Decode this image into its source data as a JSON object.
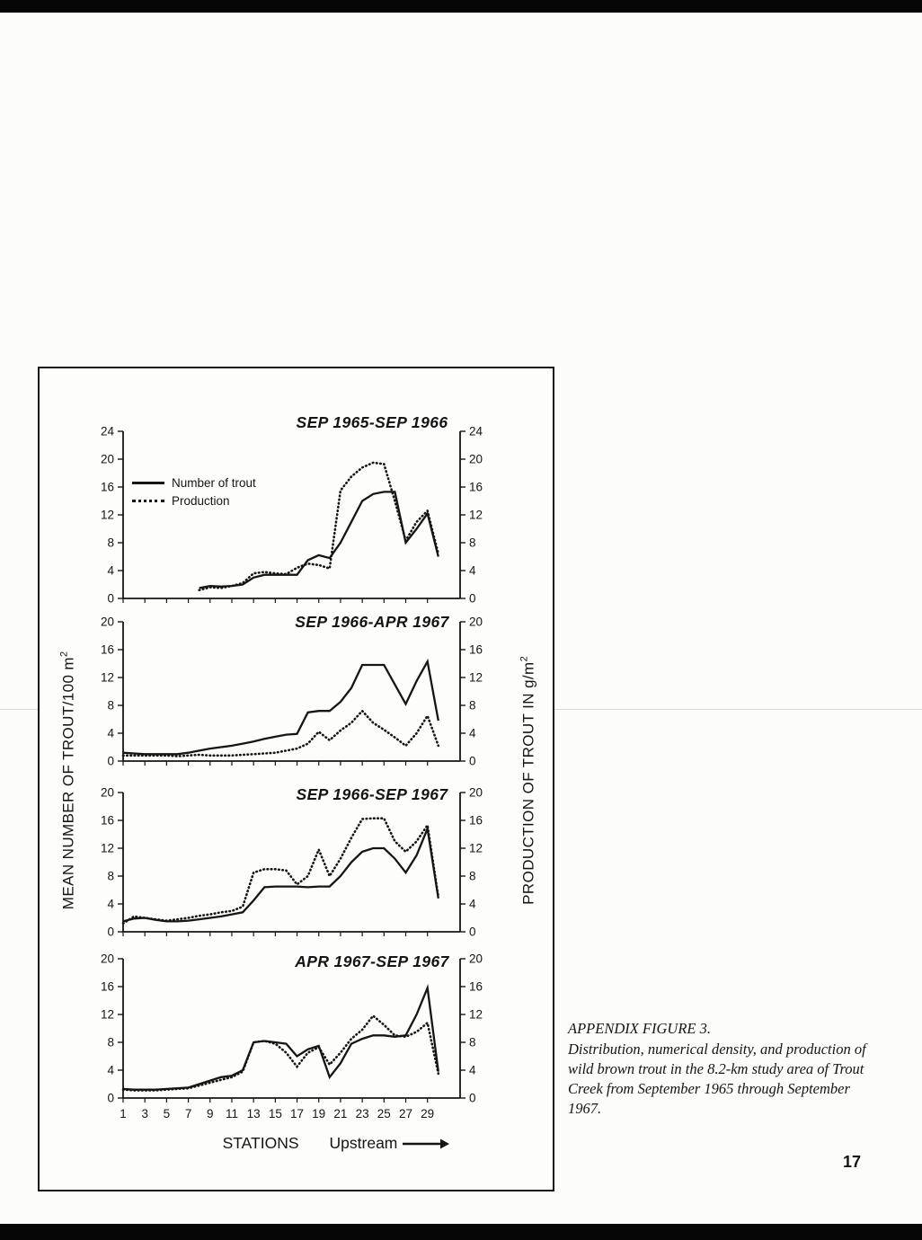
{
  "page": {
    "number": "17"
  },
  "caption": {
    "heading": "APPENDIX FIGURE 3.",
    "body": "Distribution, numerical density, and production of wild brown trout in the 8.2-km study area of Trout Creek from September 1965 through September 1967."
  },
  "legend": {
    "solid_label": "Number of trout",
    "dotted_label": "Production"
  },
  "axis": {
    "left_label": "MEAN NUMBER OF TROUT/100 m",
    "left_label_sup": "2",
    "right_label": "PRODUCTION OF TROUT IN g/m",
    "right_label_sup": "2",
    "x_label": "STATIONS",
    "x_sublabel": "Upstream",
    "x_ticks": [
      1,
      3,
      5,
      7,
      9,
      11,
      13,
      15,
      17,
      19,
      21,
      23,
      25,
      27,
      29
    ]
  },
  "chart_data": [
    {
      "type": "line",
      "title": "SEP 1965-SEP 1966",
      "xlabel": "STATIONS",
      "ylabel_left": "MEAN NUMBER OF TROUT/100 m2",
      "ylabel_right": "PRODUCTION OF TROUT IN g/m2",
      "ylim": [
        0,
        24
      ],
      "yticks": [
        0,
        4,
        8,
        12,
        16,
        20,
        24
      ],
      "show_x_ticks": false,
      "series": [
        {
          "name": "Number of trout",
          "style": "solid",
          "x": [
            8,
            9,
            10,
            11,
            12,
            13,
            14,
            15,
            16,
            17,
            18,
            19,
            20,
            21,
            22,
            23,
            24,
            25,
            26,
            27,
            28,
            29,
            30
          ],
          "y": [
            1.5,
            1.8,
            1.7,
            1.8,
            2.0,
            3.0,
            3.4,
            3.4,
            3.4,
            3.4,
            5.5,
            6.2,
            5.8,
            8.0,
            11.0,
            14.0,
            15.0,
            15.3,
            15.3,
            8.0,
            10.0,
            12.2,
            6.0
          ]
        },
        {
          "name": "Production",
          "style": "dotted",
          "x": [
            8,
            9,
            10,
            11,
            12,
            13,
            14,
            15,
            16,
            17,
            18,
            19,
            20,
            21,
            22,
            23,
            24,
            25,
            26,
            27,
            28,
            29,
            30
          ],
          "y": [
            1.2,
            1.6,
            1.5,
            1.8,
            2.2,
            3.6,
            3.8,
            3.6,
            3.5,
            4.4,
            5.0,
            4.8,
            4.3,
            15.5,
            17.5,
            18.8,
            19.5,
            19.3,
            14.0,
            8.3,
            11.0,
            12.6,
            6.4
          ]
        }
      ]
    },
    {
      "type": "line",
      "title": "SEP 1966-APR 1967",
      "ylim": [
        0,
        20
      ],
      "yticks": [
        0,
        4,
        8,
        12,
        16,
        20
      ],
      "show_x_ticks": false,
      "series": [
        {
          "name": "Number of trout",
          "style": "solid",
          "x": [
            1,
            2,
            3,
            4,
            5,
            6,
            7,
            8,
            9,
            10,
            11,
            12,
            13,
            14,
            15,
            16,
            17,
            18,
            19,
            20,
            21,
            22,
            23,
            24,
            25,
            26,
            27,
            28,
            29,
            30
          ],
          "y": [
            1.2,
            1.1,
            1.0,
            1.0,
            1.0,
            1.0,
            1.2,
            1.5,
            1.8,
            2.0,
            2.2,
            2.5,
            2.8,
            3.2,
            3.5,
            3.8,
            3.9,
            7.0,
            7.2,
            7.2,
            8.5,
            10.5,
            13.8,
            13.8,
            13.8,
            11.0,
            8.2,
            11.5,
            14.3,
            5.8
          ]
        },
        {
          "name": "Production",
          "style": "dotted",
          "x": [
            1,
            2,
            3,
            4,
            5,
            6,
            7,
            8,
            9,
            10,
            11,
            12,
            13,
            14,
            15,
            16,
            17,
            18,
            19,
            20,
            21,
            22,
            23,
            24,
            25,
            26,
            27,
            28,
            29,
            30
          ],
          "y": [
            0.8,
            0.8,
            0.8,
            0.8,
            0.8,
            0.7,
            0.8,
            0.9,
            0.8,
            0.8,
            0.8,
            0.9,
            1.0,
            1.1,
            1.2,
            1.5,
            1.8,
            2.5,
            4.2,
            3.0,
            4.4,
            5.5,
            7.2,
            5.5,
            4.5,
            3.4,
            2.2,
            4.0,
            6.5,
            2.2
          ]
        }
      ]
    },
    {
      "type": "line",
      "title": "SEP 1966-SEP 1967",
      "ylim": [
        0,
        20
      ],
      "yticks": [
        0,
        4,
        8,
        12,
        16,
        20
      ],
      "show_x_ticks": false,
      "series": [
        {
          "name": "Number of trout",
          "style": "solid",
          "x": [
            1,
            2,
            3,
            4,
            5,
            6,
            7,
            8,
            9,
            10,
            11,
            12,
            13,
            14,
            15,
            16,
            17,
            18,
            19,
            20,
            21,
            22,
            23,
            24,
            25,
            26,
            27,
            28,
            29,
            30
          ],
          "y": [
            1.5,
            1.9,
            2.0,
            1.7,
            1.5,
            1.5,
            1.6,
            1.8,
            2.0,
            2.2,
            2.5,
            2.8,
            4.5,
            6.4,
            6.5,
            6.5,
            6.5,
            6.4,
            6.5,
            6.5,
            8.0,
            10.0,
            11.5,
            12.0,
            12.0,
            10.5,
            8.5,
            11.0,
            14.8,
            4.8
          ]
        },
        {
          "name": "Production",
          "style": "dotted",
          "x": [
            1,
            2,
            3,
            4,
            5,
            6,
            7,
            8,
            9,
            10,
            11,
            12,
            13,
            14,
            15,
            16,
            17,
            18,
            19,
            20,
            21,
            22,
            23,
            24,
            25,
            26,
            27,
            28,
            29,
            30
          ],
          "y": [
            1.2,
            2.2,
            2.0,
            1.8,
            1.6,
            1.8,
            2.0,
            2.3,
            2.5,
            2.8,
            3.0,
            3.6,
            8.5,
            9.0,
            9.0,
            8.8,
            6.8,
            8.0,
            11.8,
            8.0,
            10.5,
            13.5,
            16.2,
            16.3,
            16.3,
            13.0,
            11.5,
            13.0,
            15.3,
            5.0
          ]
        }
      ]
    },
    {
      "type": "line",
      "title": "APR 1967-SEP 1967",
      "ylim": [
        0,
        20
      ],
      "yticks": [
        0,
        4,
        8,
        12,
        16,
        20
      ],
      "show_x_ticks": true,
      "series": [
        {
          "name": "Number of trout",
          "style": "solid",
          "x": [
            1,
            2,
            3,
            4,
            5,
            6,
            7,
            8,
            9,
            10,
            11,
            12,
            13,
            14,
            15,
            16,
            17,
            18,
            19,
            20,
            21,
            22,
            23,
            24,
            25,
            26,
            27,
            28,
            29,
            30
          ],
          "y": [
            1.3,
            1.2,
            1.2,
            1.2,
            1.3,
            1.4,
            1.5,
            2.0,
            2.5,
            3.0,
            3.2,
            4.0,
            8.0,
            8.2,
            8.0,
            7.8,
            6.0,
            7.0,
            7.5,
            3.0,
            5.0,
            7.8,
            8.5,
            9.0,
            9.0,
            8.8,
            9.0,
            12.0,
            15.8,
            3.8
          ]
        },
        {
          "name": "Production",
          "style": "dotted",
          "x": [
            1,
            2,
            3,
            4,
            5,
            6,
            7,
            8,
            9,
            10,
            11,
            12,
            13,
            14,
            15,
            16,
            17,
            18,
            19,
            20,
            21,
            22,
            23,
            24,
            25,
            26,
            27,
            28,
            29,
            30
          ],
          "y": [
            1.2,
            1.1,
            1.1,
            1.1,
            1.2,
            1.3,
            1.4,
            1.8,
            2.2,
            2.6,
            3.0,
            3.8,
            8.0,
            8.2,
            7.8,
            6.5,
            4.5,
            6.5,
            7.3,
            4.8,
            6.5,
            8.5,
            9.8,
            11.8,
            10.5,
            9.0,
            8.8,
            9.5,
            10.8,
            3.5
          ]
        }
      ]
    }
  ]
}
